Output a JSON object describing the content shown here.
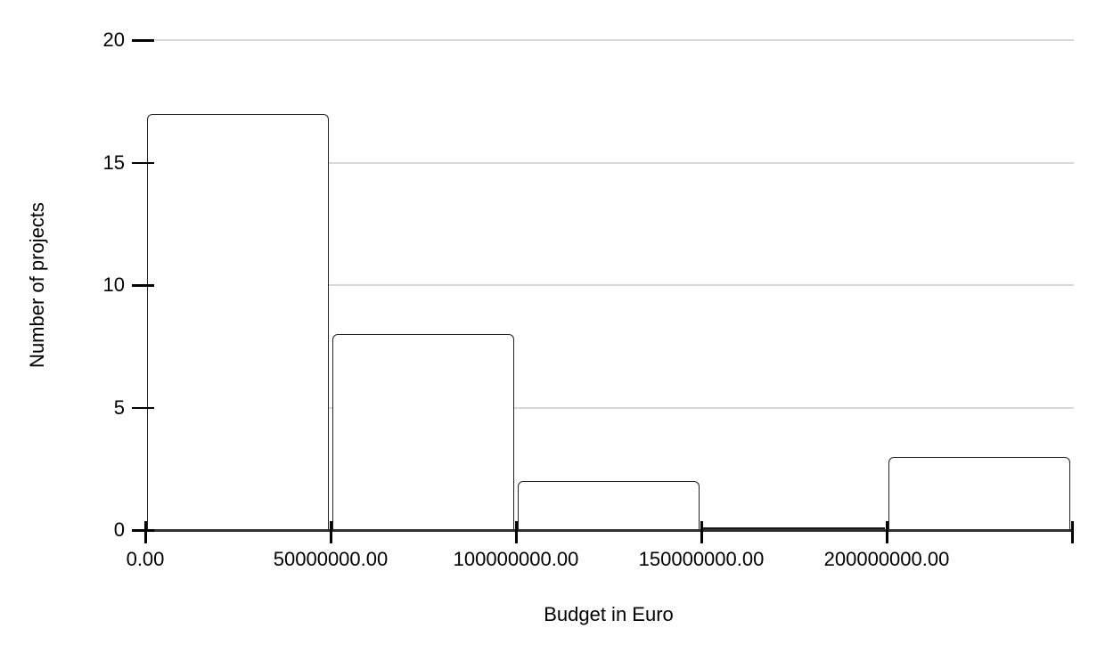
{
  "chart_data": {
    "type": "bar",
    "subtype": "histogram",
    "title": "",
    "xlabel": "Budget in Euro",
    "ylabel": "Number of projects",
    "bin_edges": [
      0,
      50000000,
      100000000,
      150000000,
      200000000,
      250000000
    ],
    "values": [
      17,
      8,
      2,
      0,
      3
    ],
    "x_tick_labels": [
      "0.00",
      "50000000.00",
      "100000000.00",
      "150000000.00",
      "200000000.00"
    ],
    "y_ticks": [
      0,
      5,
      10,
      15,
      20
    ],
    "ylim": [
      0,
      20
    ],
    "grid": "horizontal-only",
    "legend": "none",
    "colors": {
      "bar_fill": "#ffffff",
      "bar_stroke": "#222222",
      "gridline": "#d9d9d9",
      "axis_line": "#303030",
      "tick": "#000000",
      "text": "#000000",
      "background": "#ffffff"
    }
  }
}
